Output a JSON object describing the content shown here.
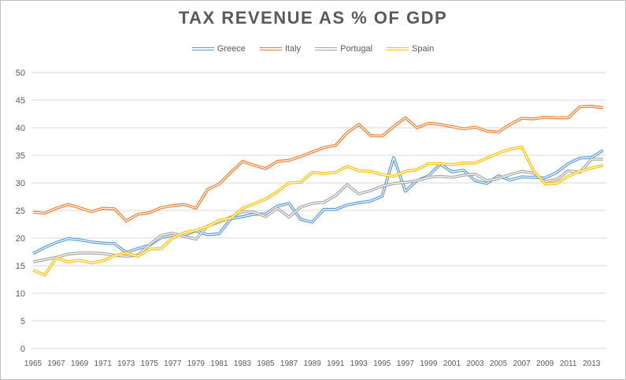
{
  "chart_data": {
    "type": "line",
    "title": "TAX REVENUE AS % OF GDP",
    "xlabel": "",
    "ylabel": "",
    "ylim": [
      0,
      50
    ],
    "y_ticks": [
      "0",
      "5",
      "10",
      "15",
      "20",
      "25",
      "30",
      "35",
      "40",
      "45",
      "50"
    ],
    "x_tick_labels": [
      "1965",
      "1967",
      "1969",
      "1971",
      "1973",
      "1975",
      "1977",
      "1979",
      "1981",
      "1983",
      "1985",
      "1987",
      "1989",
      "1991",
      "1993",
      "1995",
      "1997",
      "1999",
      "2001",
      "2003",
      "2005",
      "2007",
      "2009",
      "2011",
      "2013"
    ],
    "grid": "horizontal",
    "legend_position": "top",
    "x": [
      1965,
      1966,
      1967,
      1968,
      1969,
      1970,
      1971,
      1972,
      1973,
      1974,
      1975,
      1976,
      1977,
      1978,
      1979,
      1980,
      1981,
      1982,
      1983,
      1984,
      1985,
      1986,
      1987,
      1988,
      1989,
      1990,
      1991,
      1992,
      1993,
      1994,
      1995,
      1996,
      1997,
      1998,
      1999,
      2000,
      2001,
      2002,
      2003,
      2004,
      2005,
      2006,
      2007,
      2008,
      2009,
      2010,
      2011,
      2012,
      2013,
      2014
    ],
    "series": [
      {
        "name": "Greece",
        "color": "#5b9bd5",
        "values": [
          17.2,
          18.3,
          19.2,
          19.9,
          19.7,
          19.3,
          19.1,
          19.0,
          17.4,
          18.1,
          18.7,
          20.1,
          20.5,
          20.6,
          21.3,
          20.6,
          20.8,
          23.5,
          23.9,
          24.3,
          24.4,
          25.8,
          26.3,
          23.4,
          22.9,
          25.2,
          25.2,
          26.0,
          26.4,
          26.7,
          27.6,
          34.6,
          28.5,
          30.4,
          31.3,
          33.4,
          32.0,
          32.3,
          30.4,
          29.9,
          31.3,
          30.5,
          31.1,
          31.0,
          30.9,
          31.9,
          33.5,
          34.5,
          34.6,
          35.9
        ]
      },
      {
        "name": "Italy",
        "color": "#ed7d31",
        "values": [
          24.7,
          24.5,
          25.4,
          26.1,
          25.5,
          24.8,
          25.4,
          25.3,
          23.1,
          24.3,
          24.6,
          25.5,
          25.9,
          26.1,
          25.4,
          28.8,
          29.8,
          31.9,
          33.9,
          33.2,
          32.6,
          33.9,
          34.1,
          34.8,
          35.6,
          36.4,
          36.8,
          39.1,
          40.6,
          38.6,
          38.5,
          40.2,
          41.8,
          40.0,
          40.8,
          40.6,
          40.2,
          39.8,
          40.1,
          39.4,
          39.2,
          40.6,
          41.7,
          41.6,
          41.9,
          41.8,
          41.8,
          43.8,
          43.9,
          43.6
        ]
      },
      {
        "name": "Portugal",
        "color": "#a5a5a5",
        "values": [
          15.7,
          16.1,
          16.5,
          17.1,
          17.3,
          17.3,
          17.2,
          16.9,
          16.7,
          16.9,
          18.8,
          20.5,
          20.9,
          20.3,
          19.8,
          22.2,
          22.9,
          23.8,
          24.8,
          24.7,
          23.9,
          25.4,
          23.8,
          25.6,
          26.3,
          26.5,
          27.7,
          29.7,
          28.0,
          28.6,
          29.4,
          29.9,
          30.1,
          30.4,
          31.0,
          31.2,
          31.0,
          31.4,
          31.6,
          30.4,
          30.8,
          31.5,
          32.1,
          31.8,
          30.2,
          30.6,
          32.2,
          31.9,
          34.3,
          34.3
        ]
      },
      {
        "name": "Spain",
        "color": "#ffc000",
        "values": [
          14.2,
          13.3,
          16.4,
          15.7,
          16.0,
          15.5,
          15.9,
          16.8,
          17.3,
          16.7,
          18.0,
          18.1,
          20.0,
          21.0,
          21.4,
          22.1,
          23.2,
          23.6,
          25.4,
          26.2,
          27.1,
          28.4,
          30.0,
          30.1,
          31.9,
          31.7,
          31.9,
          33.0,
          32.2,
          32.1,
          31.5,
          31.2,
          32.1,
          32.4,
          33.5,
          33.5,
          33.3,
          33.6,
          33.6,
          34.5,
          35.4,
          36.1,
          36.5,
          32.3,
          29.8,
          29.9,
          31.2,
          32.1,
          32.7,
          33.2
        ]
      }
    ]
  }
}
